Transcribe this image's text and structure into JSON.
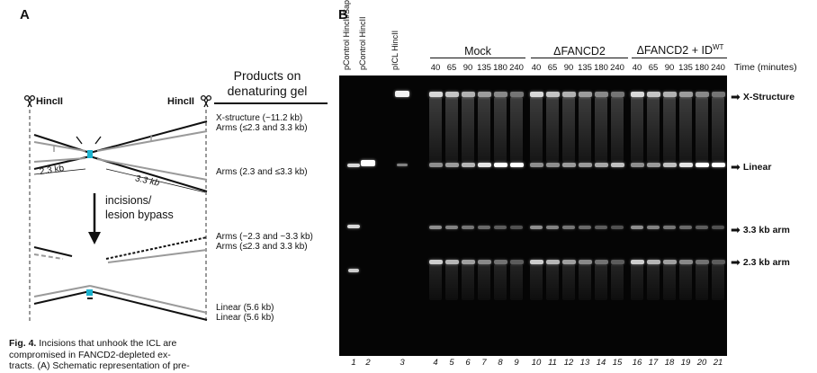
{
  "panel_a": {
    "letter": "A",
    "products_title_line1": "Products on",
    "products_title_line2": "denaturing gel",
    "hincii_left": "HincII",
    "hincii_right": "HincII",
    "incisions_line1": "incisions/",
    "incisions_line2": "lesion bypass",
    "left_arm_size": "2.3 kb",
    "right_arm_size": "3.3 kb",
    "products": [
      "X-structure (~11.2 kb)",
      "Arms (≤2.3 and 3.3 kb)",
      "Arms (2.3 and ≤3.3 kb)",
      "Arms (~2.3 and ~3.3 kb)",
      "Arms (≤2.3 and 3.3 kb)",
      "Linear (5.6 kb)",
      "Linear (5.6 kb)"
    ]
  },
  "caption": {
    "bold_part": "Fig. 4.",
    "line1_rest": " Incisions that unhook the ICL are",
    "line2": "compromised in FANCD2-depleted ex-",
    "line3": "tracts. (A) Schematic representation of pre-"
  },
  "panel_b": {
    "letter": "B",
    "control_lanes": [
      "pControl HincII/SapI",
      "pControl HincII",
      "pICL HincII"
    ],
    "groups": [
      "Mock",
      "ΔFANCD2",
      "ΔFANCD2 + ID"
    ],
    "group_superscript": "WT",
    "time_label": "Time (minutes)",
    "time_points": [
      "40",
      "65",
      "90",
      "135",
      "180",
      "240"
    ],
    "lane_numbers": [
      "1",
      "2",
      "3",
      "4",
      "5",
      "6",
      "7",
      "8",
      "9",
      "10",
      "11",
      "12",
      "13",
      "14",
      "15",
      "16",
      "17",
      "18",
      "19",
      "20",
      "21"
    ],
    "band_labels": [
      "X-Structure",
      "Linear",
      "3.3 kb arm",
      "2.3 kb arm"
    ]
  }
}
